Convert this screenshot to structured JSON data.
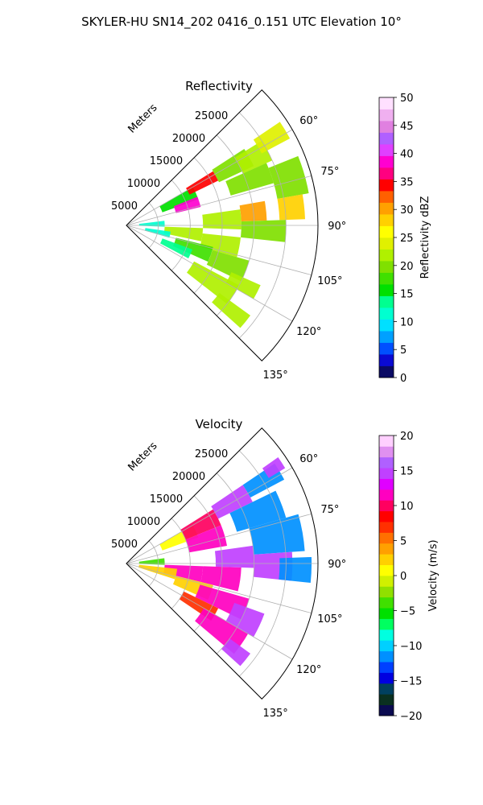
{
  "figure": {
    "title": "SKYLER-HU  SN14_202  0416_0.151 UTC Elevation 10°"
  },
  "chart_data": [
    {
      "type": "heatmap",
      "subtype": "radar-sector-ppi",
      "title": "Reflectivity",
      "range_label": "Meters",
      "range_ticks": [
        5000,
        10000,
        15000,
        20000,
        25000
      ],
      "range_tick_labels": [
        "5000",
        "10000",
        "15000",
        "20000",
        "25000"
      ],
      "azimuth_range": [
        45,
        135
      ],
      "azimuth_ticks": [
        60,
        75,
        90,
        105,
        120,
        135
      ],
      "azimuth_tick_labels": [
        "60°",
        "75°",
        "90°",
        "105°",
        "120°",
        "135°"
      ],
      "max_range": 30000,
      "grid": true,
      "colorbar": {
        "label": "Reflectivity dBZ",
        "range": [
          0,
          50
        ],
        "ticks": [
          0,
          5,
          10,
          15,
          20,
          25,
          30,
          35,
          40,
          45,
          50
        ],
        "tick_labels": [
          "0",
          "5",
          "10",
          "15",
          "20",
          "25",
          "30",
          "35",
          "40",
          "45",
          "50"
        ],
        "colors": [
          "#0a0a64",
          "#0a0ad2",
          "#0050ff",
          "#00a0ff",
          "#00e0ff",
          "#00ffd0",
          "#00ff90",
          "#00e000",
          "#40e000",
          "#80e000",
          "#b0f000",
          "#e0f000",
          "#ffff00",
          "#ffd000",
          "#ffa000",
          "#ff6000",
          "#ff0000",
          "#ff0080",
          "#ff00d0",
          "#e040ff",
          "#b060ff",
          "#e080e0",
          "#f0b0f0",
          "#ffe0ff"
        ]
      },
      "cells": [
        {
          "r": [
            2000,
            6000
          ],
          "az": [
            83,
            92
          ],
          "v": 12
        },
        {
          "r": [
            6000,
            12000
          ],
          "az": [
            60,
            70
          ],
          "v": 16
        },
        {
          "r": [
            8000,
            12000
          ],
          "az": [
            68,
            76
          ],
          "v": 38
        },
        {
          "r": [
            11000,
            16000
          ],
          "az": [
            58,
            64
          ],
          "v": 34
        },
        {
          "r": [
            16000,
            22000
          ],
          "az": [
            57,
            65
          ],
          "v": 20
        },
        {
          "r": [
            20000,
            25000
          ],
          "az": [
            58,
            66
          ],
          "v": 22
        },
        {
          "r": [
            24000,
            29000
          ],
          "az": [
            56,
            62
          ],
          "v": 24
        },
        {
          "r": [
            17000,
            24000
          ],
          "az": [
            66,
            74
          ],
          "v": 19
        },
        {
          "r": [
            24000,
            29000
          ],
          "az": [
            68,
            80
          ],
          "v": 20
        },
        {
          "r": [
            18000,
            22000
          ],
          "az": [
            80,
            88
          ],
          "v": 30
        },
        {
          "r": [
            24000,
            28000
          ],
          "az": [
            80,
            88
          ],
          "v": 28
        },
        {
          "r": [
            12000,
            18000
          ],
          "az": [
            82,
            92
          ],
          "v": 21
        },
        {
          "r": [
            18000,
            25000
          ],
          "az": [
            88,
            96
          ],
          "v": 20
        },
        {
          "r": [
            6000,
            12000
          ],
          "az": [
            92,
            102
          ],
          "v": 22
        },
        {
          "r": [
            12000,
            18000
          ],
          "az": [
            96,
            106
          ],
          "v": 21
        },
        {
          "r": [
            8000,
            14000
          ],
          "az": [
            104,
            114
          ],
          "v": 17
        },
        {
          "r": [
            14000,
            20000
          ],
          "az": [
            106,
            116
          ],
          "v": 20
        },
        {
          "r": [
            18000,
            23000
          ],
          "az": [
            114,
            120
          ],
          "v": 21
        },
        {
          "r": [
            6000,
            11000
          ],
          "az": [
            110,
            118
          ],
          "v": 14
        },
        {
          "r": [
            12000,
            20000
          ],
          "az": [
            118,
            128
          ],
          "v": 21
        },
        {
          "r": [
            18000,
            24000
          ],
          "az": [
            126,
            132
          ],
          "v": 22
        },
        {
          "r": [
            3000,
            7000
          ],
          "az": [
            98,
            106
          ],
          "v": 11
        }
      ]
    },
    {
      "type": "heatmap",
      "subtype": "radar-sector-ppi",
      "title": "Velocity",
      "range_label": "Meters",
      "range_ticks": [
        5000,
        10000,
        15000,
        20000,
        25000
      ],
      "range_tick_labels": [
        "5000",
        "10000",
        "15000",
        "20000",
        "25000"
      ],
      "azimuth_range": [
        45,
        135
      ],
      "azimuth_ticks": [
        60,
        75,
        90,
        105,
        120,
        135
      ],
      "azimuth_tick_labels": [
        "60°",
        "75°",
        "90°",
        "105°",
        "120°",
        "135°"
      ],
      "max_range": 30000,
      "grid": true,
      "colorbar": {
        "label": "Velocity (m/s)",
        "range": [
          -20,
          20
        ],
        "ticks": [
          -20,
          -15,
          -10,
          -5,
          0,
          5,
          10,
          15,
          20
        ],
        "tick_labels": [
          "−20",
          "−15",
          "−10",
          "−5",
          "0",
          "5",
          "10",
          "15",
          "20"
        ],
        "colors": [
          "#0a0a50",
          "#0a3020",
          "#004060",
          "#0000e0",
          "#0040ff",
          "#0090ff",
          "#00d0ff",
          "#00ffe0",
          "#00ff60",
          "#00e000",
          "#40e000",
          "#90e000",
          "#d0f000",
          "#ffff00",
          "#ffd000",
          "#ffa000",
          "#ff7000",
          "#ff3000",
          "#ff0000",
          "#ff0060",
          "#ff00c0",
          "#e000ff",
          "#c040ff",
          "#b060ff",
          "#e090f0",
          "#ffd0ff"
        ]
      },
      "cells": [
        {
          "r": [
            2000,
            6000
          ],
          "az": [
            82,
            92
          ],
          "v": -4
        },
        {
          "r": [
            6000,
            12000
          ],
          "az": [
            60,
            70
          ],
          "v": 1
        },
        {
          "r": [
            10000,
            16000
          ],
          "az": [
            58,
            68
          ],
          "v": 10
        },
        {
          "r": [
            10000,
            16000
          ],
          "az": [
            68,
            80
          ],
          "v": 11
        },
        {
          "r": [
            16000,
            22000
          ],
          "az": [
            56,
            64
          ],
          "v": 14
        },
        {
          "r": [
            22000,
            28000
          ],
          "az": [
            56,
            62
          ],
          "v": -12
        },
        {
          "r": [
            26000,
            29000
          ],
          "az": [
            55,
            59
          ],
          "v": 15
        },
        {
          "r": [
            18000,
            26000
          ],
          "az": [
            64,
            74
          ],
          "v": -12
        },
        {
          "r": [
            20000,
            28000
          ],
          "az": [
            74,
            86
          ],
          "v": -11
        },
        {
          "r": [
            14000,
            20000
          ],
          "az": [
            82,
            92
          ],
          "v": 15
        },
        {
          "r": [
            20000,
            26000
          ],
          "az": [
            86,
            96
          ],
          "v": 14
        },
        {
          "r": [
            24000,
            29000
          ],
          "az": [
            88,
            96
          ],
          "v": -12
        },
        {
          "r": [
            12000,
            18000
          ],
          "az": [
            92,
            104
          ],
          "v": 11
        },
        {
          "r": [
            6000,
            12000
          ],
          "az": [
            92,
            104
          ],
          "v": 11
        },
        {
          "r": [
            2000,
            8000
          ],
          "az": [
            96,
            108
          ],
          "v": 3
        },
        {
          "r": [
            8000,
            14000
          ],
          "az": [
            104,
            114
          ],
          "v": 2
        },
        {
          "r": [
            12000,
            20000
          ],
          "az": [
            106,
            116
          ],
          "v": 12
        },
        {
          "r": [
            18000,
            23000
          ],
          "az": [
            110,
            120
          ],
          "v": 15
        },
        {
          "r": [
            10000,
            16000
          ],
          "az": [
            116,
            124
          ],
          "v": 7
        },
        {
          "r": [
            14000,
            22000
          ],
          "az": [
            120,
            130
          ],
          "v": 11
        },
        {
          "r": [
            20000,
            24000
          ],
          "az": [
            126,
            132
          ],
          "v": 15
        }
      ]
    }
  ]
}
